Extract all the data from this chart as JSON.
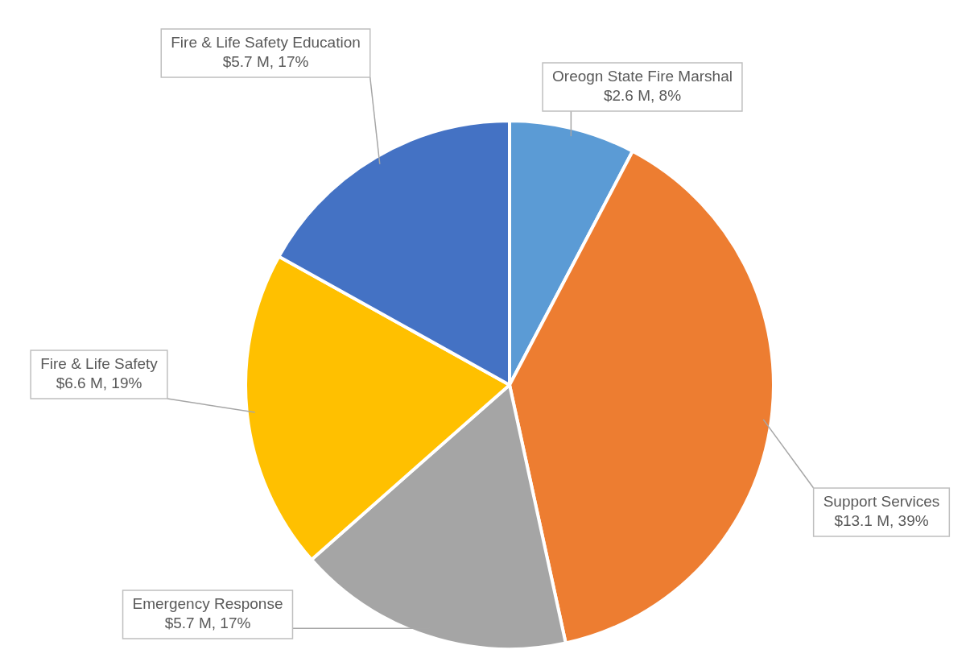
{
  "chart_data": {
    "type": "pie",
    "categories": [
      "Oreogn State Fire Marshal",
      "Support Services",
      "Emergency Response",
      "Fire & Life Safety",
      "Fire & Life Safety Education"
    ],
    "values": [
      2.6,
      13.1,
      5.7,
      6.6,
      5.7
    ],
    "colors": [
      "#5b9bd5",
      "#ed7d31",
      "#a5a5a5",
      "#ffc000",
      "#4472c4"
    ],
    "value_labels": [
      "$2.6 M, 8%",
      "$13.1 M, 39%",
      "$5.7 M, 17%",
      "$6.6 M, 19%",
      "$5.7 M, 17%"
    ]
  }
}
